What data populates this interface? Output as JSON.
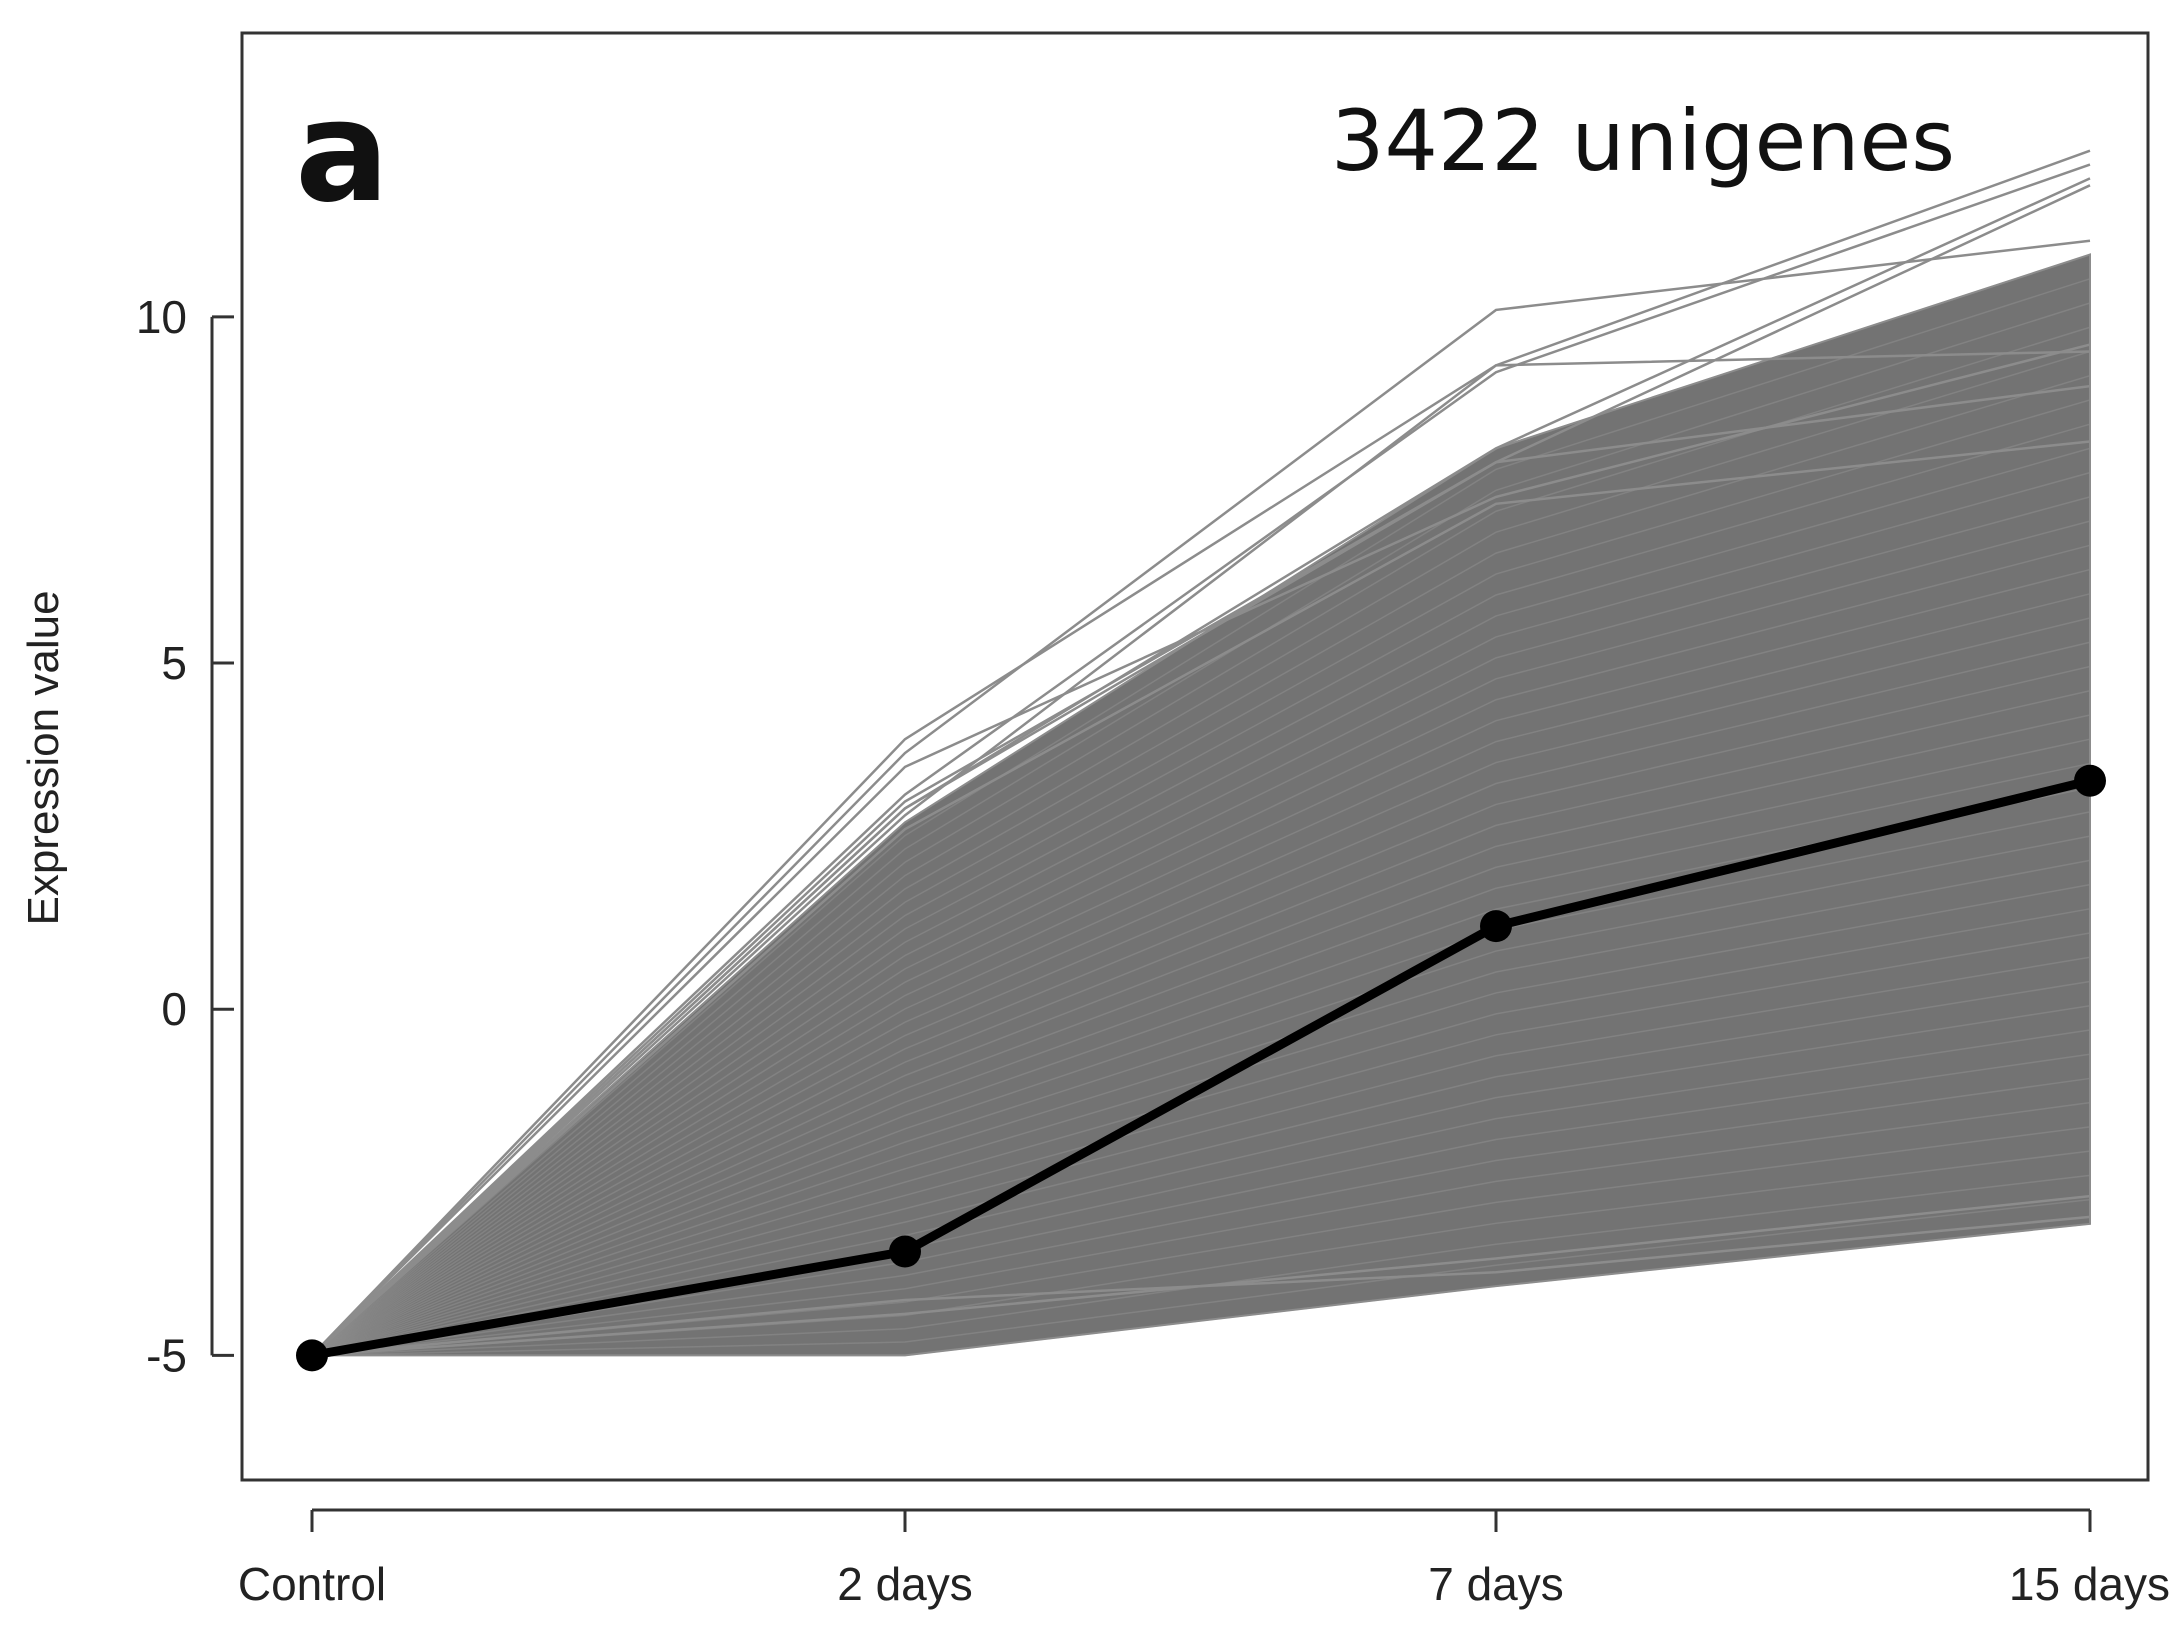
{
  "chart_data": {
    "type": "line",
    "panel_label": "a",
    "annotation": "3422 unigenes",
    "xlabel": "",
    "ylabel": "Expression value",
    "categories": [
      "Control",
      "2 days",
      "7 days",
      "15 days"
    ],
    "yticks": [
      -5,
      0,
      5,
      10
    ],
    "ylim": [
      -6.8,
      14.1
    ],
    "grid": false,
    "legend": "none",
    "colors": {
      "profiles": "#8c8c8c",
      "profile_fill": "#737373",
      "mean": "#000000"
    },
    "profile_envelope": {
      "upper": [
        -5,
        2.7,
        8.1,
        10.9
      ],
      "lower": [
        -5,
        -5,
        -4.0,
        -3.1
      ]
    },
    "profile_outliers": [
      [
        -5,
        3.9,
        9.3,
        12.4
      ],
      [
        -5,
        3.7,
        10.1,
        11.1
      ],
      [
        -5,
        3.1,
        9.2,
        12.2
      ],
      [
        -5,
        2.9,
        8.1,
        12.0
      ],
      [
        -5,
        3.0,
        7.9,
        11.9
      ],
      [
        -5,
        2.8,
        9.3,
        9.5
      ],
      [
        -5,
        3.5,
        7.4,
        9.6
      ],
      [
        -5,
        2.9,
        7.9,
        9.0
      ],
      [
        -5,
        2.6,
        7.3,
        8.2
      ],
      [
        -5,
        -4.2,
        -3.8,
        -3.0
      ],
      [
        -5,
        -4.4,
        -3.6,
        -2.7
      ]
    ],
    "series": [
      {
        "name": "",
        "values": [
          -5,
          -3.5,
          1.2,
          3.3
        ]
      }
    ]
  }
}
